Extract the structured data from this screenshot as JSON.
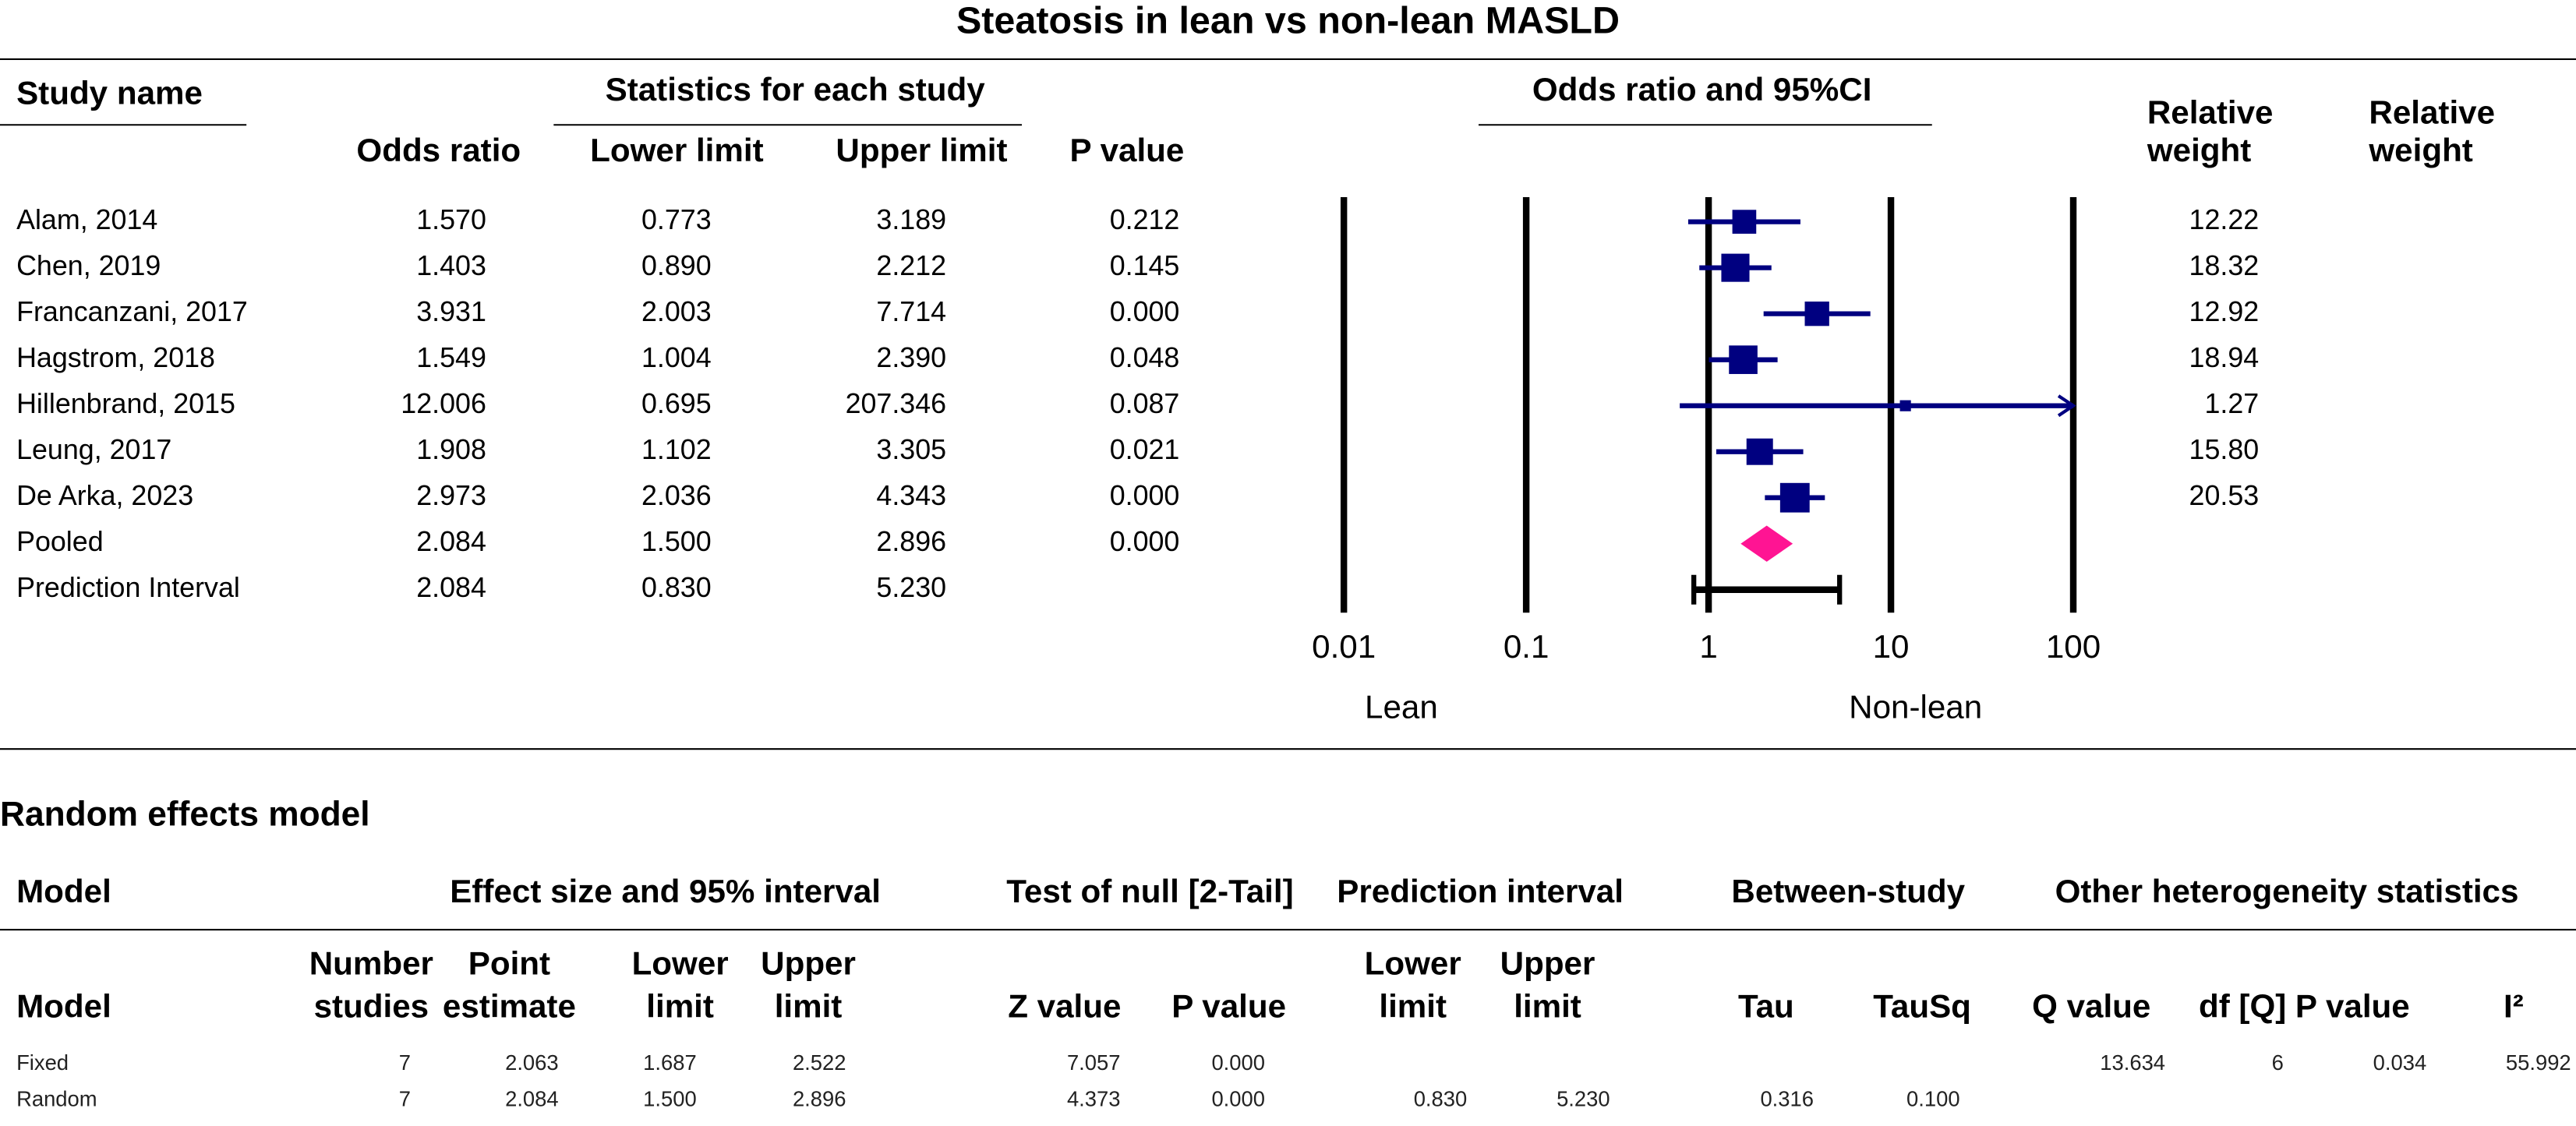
{
  "chart_data": {
    "type": "forest",
    "title": "Steatosis in lean vs non-lean MASLD",
    "column_headers": {
      "study_name": "Study name",
      "statistics": "Statistics for each study",
      "odds_ratio": "Odds ratio",
      "lower_limit": "Lower limit",
      "upper_limit": "Upper limit",
      "p_value": "P value",
      "plot": "Odds ratio and 95%CI",
      "weight_1": [
        "Relative",
        "weight"
      ],
      "weight_2": [
        "Relative",
        "weight"
      ]
    },
    "categories": [
      "Alam, 2014",
      "Chen, 2019",
      "Francanzani, 2017",
      "Hagstrom, 2018",
      "Hillenbrand, 2015",
      "Leung, 2017",
      "De Arka, 2023",
      "Pooled",
      "Prediction Interval"
    ],
    "row_kinds": [
      "study",
      "study",
      "study",
      "study",
      "study",
      "study",
      "study",
      "pooled",
      "prediction"
    ],
    "odds_ratio": {
      "values": [
        1.57,
        1.403,
        3.931,
        1.549,
        12.006,
        1.908,
        2.973,
        2.084,
        2.084
      ],
      "value_labels": [
        "1.570",
        "1.403",
        "3.931",
        "1.549",
        "12.006",
        "1.908",
        "2.973",
        "2.084",
        "2.084"
      ]
    },
    "lower": {
      "values": [
        0.773,
        0.89,
        2.003,
        1.004,
        0.695,
        1.102,
        2.036,
        1.5,
        0.83
      ],
      "value_labels": [
        "0.773",
        "0.890",
        "2.003",
        "1.004",
        "0.695",
        "1.102",
        "2.036",
        "1.500",
        "0.830"
      ]
    },
    "upper": {
      "values": [
        3.189,
        2.212,
        7.714,
        2.39,
        207.346,
        3.305,
        4.343,
        2.896,
        5.23
      ],
      "value_labels": [
        "3.189",
        "2.212",
        "7.714",
        "2.390",
        "207.346",
        "3.305",
        "4.343",
        "2.896",
        "5.230"
      ]
    },
    "p_value": {
      "values": [
        0.212,
        0.145,
        0,
        0.048,
        0.087,
        0.021,
        0,
        0,
        null
      ],
      "value_labels": [
        "0.212",
        "0.145",
        "0.000",
        "0.048",
        "0.087",
        "0.021",
        "0.000",
        "0.000",
        null
      ]
    },
    "weight": {
      "values": [
        12.22,
        18.32,
        12.92,
        18.94,
        1.27,
        15.8,
        20.53,
        null,
        null
      ],
      "value_labels": [
        "12.22",
        "18.32",
        "12.92",
        "18.94",
        "1.27",
        "15.80",
        "20.53",
        null,
        null
      ]
    },
    "xscale": "log",
    "xlim": [
      0.01,
      100
    ],
    "xticks": [
      0.01,
      0.1,
      1,
      10,
      100
    ],
    "grid": true,
    "xlabel_left": "Lean",
    "xlabel_right": "Non-lean",
    "box_color": "#000080",
    "diamond_color": "#ff1493",
    "prediction_color": "#000000"
  },
  "table": {
    "title": "Random effects model",
    "groups": [
      "Model",
      "Effect size and 95% interval",
      "Test of null [2-Tail]",
      "Prediction interval",
      "Between-study",
      "Other heterogeneity statistics"
    ],
    "header": [
      [
        "Model"
      ],
      [
        "Number",
        "studies"
      ],
      [
        "Point",
        "estimate"
      ],
      [
        "Lower",
        "limit"
      ],
      [
        "Upper",
        "limit"
      ],
      [
        "Z value"
      ],
      [
        "P value"
      ],
      [
        "Lower",
        "limit"
      ],
      [
        "Upper",
        "limit"
      ],
      [
        "Tau"
      ],
      [
        "TauSq"
      ],
      [
        "Q value"
      ],
      [
        "df [Q]"
      ],
      [
        "P value"
      ],
      [
        "I²"
      ]
    ],
    "rows": [
      [
        "Fixed",
        "7",
        "2.063",
        "1.687",
        "2.522",
        "7.057",
        "0.000",
        null,
        null,
        null,
        null,
        "13.634",
        "6",
        "0.034",
        "55.992"
      ],
      [
        "Random",
        "7",
        "2.084",
        "1.500",
        "2.896",
        "4.373",
        "0.000",
        "0.830",
        "5.230",
        "0.316",
        "0.100",
        null,
        null,
        null,
        null
      ]
    ]
  }
}
